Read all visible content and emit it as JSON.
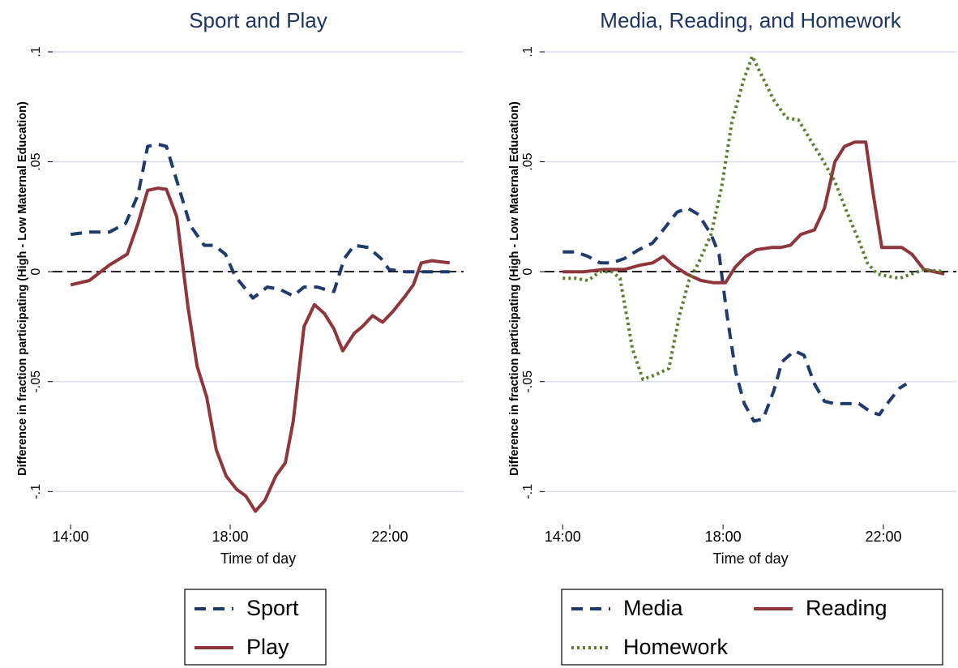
{
  "chart_data": [
    {
      "type": "line",
      "title": "Sport and Play",
      "xlabel": "Time of day",
      "ylabel": "Difference in fraction participating (High - Low Maternal Education)",
      "xlim": [
        13.55,
        23.85
      ],
      "xticks": [
        {
          "value": 14,
          "label": "14:00"
        },
        {
          "value": 18,
          "label": "18:00"
        },
        {
          "value": 22,
          "label": "22:00"
        }
      ],
      "ylim": [
        -0.115,
        0.107
      ],
      "yticks": [
        {
          "value": -0.1,
          "label": "-.1"
        },
        {
          "value": -0.05,
          "label": "-.05"
        },
        0,
        {
          "value": 0.05,
          "label": ".05"
        },
        {
          "value": 0.1,
          "label": ".1"
        }
      ],
      "grid": true,
      "reference_line": 0,
      "legend_columns": 1,
      "series": [
        {
          "name": "Sport",
          "color": "#1f3a6b",
          "style": "dash",
          "x": [
            14.0,
            14.47,
            14.97,
            15.38,
            15.69,
            15.93,
            16.19,
            16.4,
            16.7,
            17.0,
            17.35,
            17.6,
            17.88,
            18.12,
            18.57,
            18.93,
            19.24,
            19.58,
            19.85,
            20.19,
            20.36,
            20.6,
            20.86,
            21.11,
            21.47,
            21.78,
            21.98,
            22.39,
            23.0,
            23.5
          ],
          "values": [
            0.017,
            0.018,
            0.018,
            0.022,
            0.035,
            0.057,
            0.058,
            0.057,
            0.039,
            0.021,
            0.012,
            0.012,
            0.008,
            -0.002,
            -0.012,
            -0.007,
            -0.008,
            -0.011,
            -0.007,
            -0.007,
            -0.008,
            -0.009,
            0.006,
            0.012,
            0.011,
            0.006,
            0.001,
            0,
            0,
            0
          ]
        },
        {
          "name": "Play",
          "color": "#8f353c",
          "style": "solid",
          "x": [
            14.0,
            14.47,
            14.97,
            15.42,
            15.69,
            15.93,
            16.19,
            16.4,
            16.66,
            16.94,
            17.17,
            17.41,
            17.65,
            17.9,
            18.16,
            18.39,
            18.63,
            18.87,
            19.14,
            19.38,
            19.58,
            19.85,
            20.11,
            20.36,
            20.6,
            20.82,
            21.11,
            21.31,
            21.57,
            21.82,
            22.08,
            22.39,
            22.59,
            22.79,
            23.06,
            23.5
          ],
          "values": [
            -0.006,
            -0.004,
            0.003,
            0.008,
            0.022,
            0.037,
            0.038,
            0.0375,
            0.025,
            -0.016,
            -0.043,
            -0.057,
            -0.081,
            -0.093,
            -0.099,
            -0.102,
            -0.109,
            -0.104,
            -0.093,
            -0.087,
            -0.068,
            -0.025,
            -0.015,
            -0.019,
            -0.026,
            -0.036,
            -0.028,
            -0.025,
            -0.02,
            -0.023,
            -0.018,
            -0.011,
            -0.006,
            0.004,
            0.005,
            0.004
          ]
        }
      ]
    },
    {
      "type": "line",
      "title": "Media, Reading, and Homework",
      "xlabel": "Time of day",
      "ylabel": "Difference in fraction participating (High - Low Maternal Education)",
      "xlim": [
        13.55,
        23.82
      ],
      "xticks": [
        {
          "value": 14,
          "label": "14:00"
        },
        {
          "value": 18,
          "label": "18:00"
        },
        {
          "value": 22,
          "label": "22:00"
        }
      ],
      "ylim": [
        -0.115,
        0.107
      ],
      "yticks": [
        {
          "value": -0.1,
          "label": "-.1"
        },
        {
          "value": -0.05,
          "label": "-.05"
        },
        0,
        {
          "value": 0.05,
          "label": ".05"
        },
        {
          "value": 0.1,
          "label": ".1"
        }
      ],
      "grid": true,
      "reference_line": 0,
      "legend_columns": 2,
      "series": [
        {
          "name": "Media",
          "color": "#1f3a6b",
          "style": "dash",
          "x": [
            14.0,
            14.32,
            14.63,
            14.93,
            15.23,
            15.54,
            15.9,
            16.24,
            16.55,
            16.85,
            17.11,
            17.39,
            17.7,
            17.9,
            18.1,
            18.32,
            18.53,
            18.77,
            19.0,
            19.27,
            19.47,
            19.78,
            20.02,
            20.28,
            20.53,
            20.79,
            21.09,
            21.39,
            21.7,
            21.9,
            22.14,
            22.4,
            22.57
          ],
          "values": [
            0.009,
            0.009,
            0.007,
            0.004,
            0.004,
            0.006,
            0.01,
            0.013,
            0.02,
            0.027,
            0.029,
            0.026,
            0.017,
            0.008,
            -0.02,
            -0.046,
            -0.06,
            -0.068,
            -0.067,
            -0.054,
            -0.041,
            -0.036,
            -0.038,
            -0.051,
            -0.059,
            -0.06,
            -0.06,
            -0.06,
            -0.064,
            -0.065,
            -0.059,
            -0.053,
            -0.051
          ]
        },
        {
          "name": "Reading",
          "color": "#8f353c",
          "style": "solid",
          "x": [
            14.0,
            14.53,
            15.03,
            15.54,
            15.94,
            16.24,
            16.51,
            16.75,
            17.09,
            17.45,
            17.76,
            18.06,
            18.3,
            18.57,
            18.83,
            19.21,
            19.43,
            19.68,
            19.94,
            20.28,
            20.53,
            20.79,
            21.03,
            21.29,
            21.56,
            21.74,
            21.96,
            22.2,
            22.46,
            22.71,
            23.01,
            23.52
          ],
          "values": [
            0,
            0,
            0.001,
            0.001,
            0.003,
            0.004,
            0.007,
            0.003,
            -0.001,
            -0.004,
            -0.005,
            -0.005,
            0.002,
            0.007,
            0.01,
            0.011,
            0.011,
            0.012,
            0.017,
            0.019,
            0.029,
            0.05,
            0.057,
            0.059,
            0.059,
            0.036,
            0.011,
            0.011,
            0.011,
            0.008,
            0.001,
            -0.001
          ]
        },
        {
          "name": "Homework",
          "color": "#5c7d2e",
          "style": "dot",
          "x": [
            14.0,
            14.32,
            14.63,
            14.93,
            15.23,
            15.43,
            15.74,
            16.0,
            16.3,
            16.65,
            16.91,
            17.15,
            17.39,
            17.7,
            17.96,
            18.22,
            18.51,
            18.73,
            18.97,
            19.27,
            19.58,
            19.88,
            20.18,
            20.48,
            20.79,
            21.09,
            21.39,
            21.6,
            21.84,
            22.1,
            22.4,
            22.71,
            23.01,
            23.52
          ],
          "values": [
            -0.003,
            -0.003,
            -0.004,
            0,
            0,
            -0.003,
            -0.035,
            -0.049,
            -0.047,
            -0.044,
            -0.02,
            -0.004,
            0.004,
            0.017,
            0.038,
            0.068,
            0.087,
            0.098,
            0.089,
            0.078,
            0.07,
            0.069,
            0.06,
            0.051,
            0.041,
            0.027,
            0.014,
            0.004,
            -0.001,
            -0.002,
            -0.003,
            -0.001,
            0.001,
            0
          ]
        }
      ]
    }
  ]
}
